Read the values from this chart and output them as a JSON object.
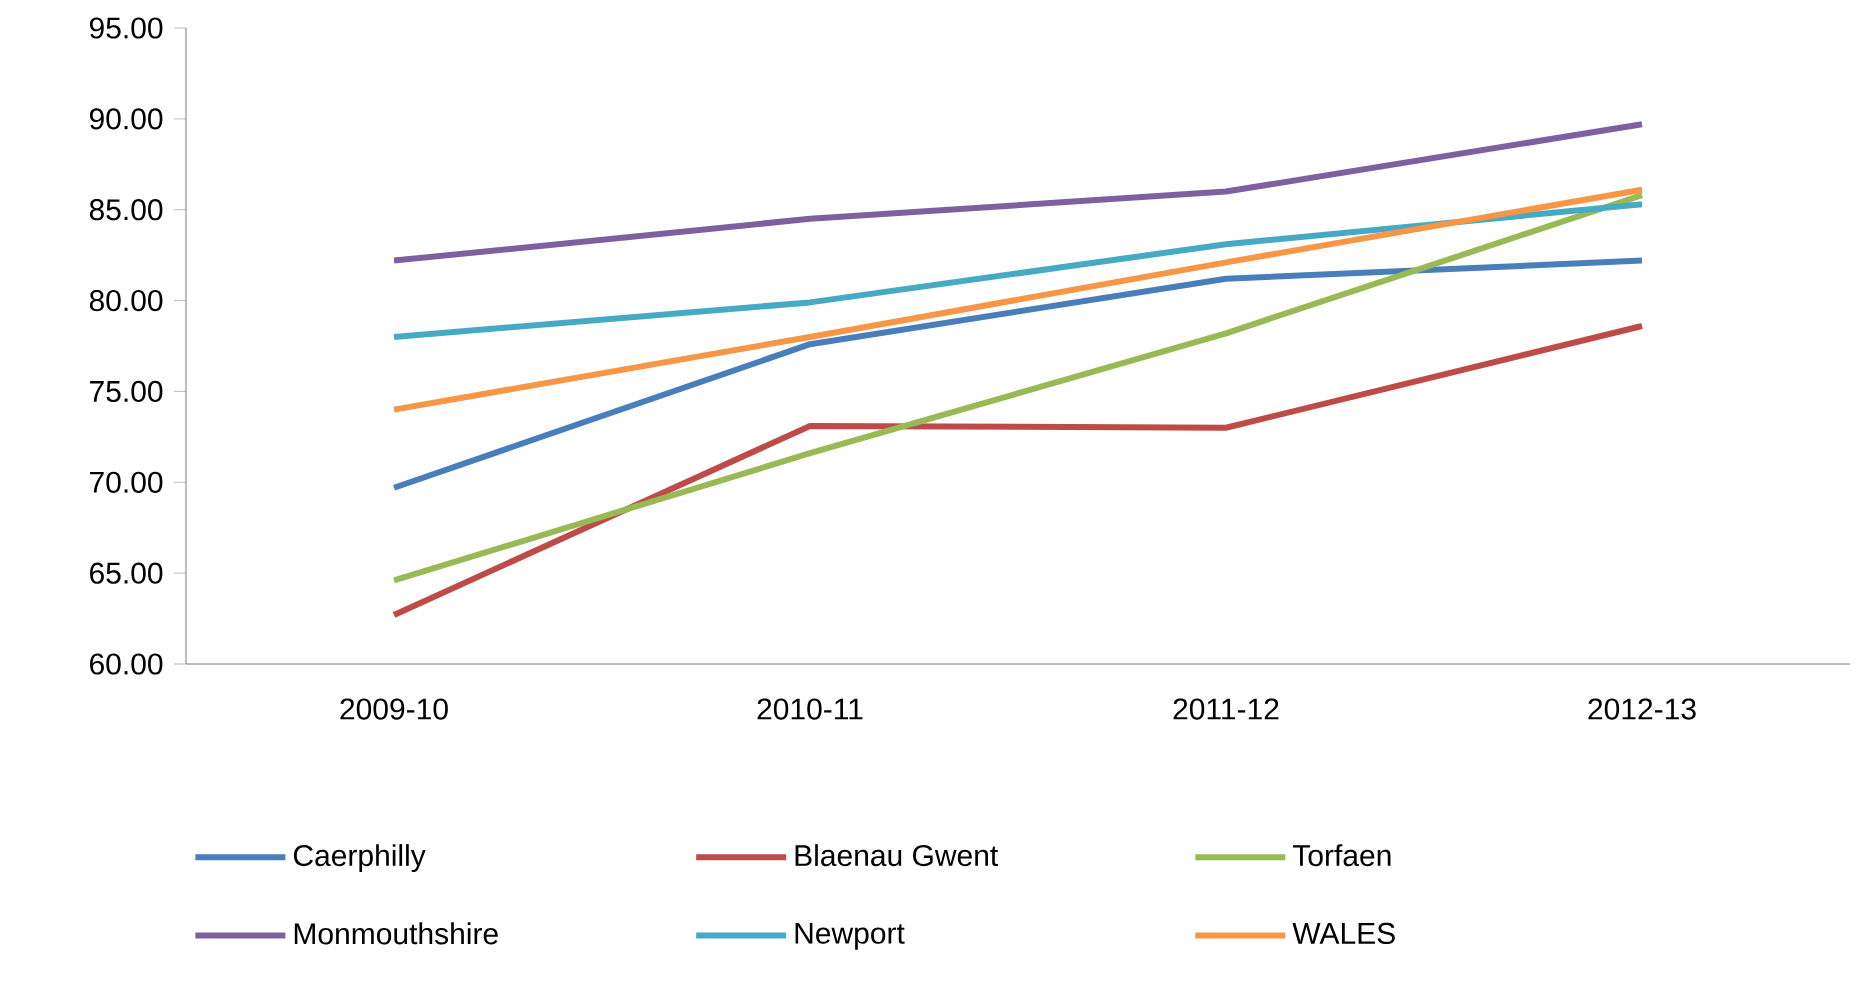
{
  "chart_data": {
    "type": "line",
    "categories": [
      "2009-10",
      "2010-11",
      "2011-12",
      "2012-13"
    ],
    "series": [
      {
        "name": "Caerphilly",
        "color": "#4a7ebb",
        "values": [
          69.7,
          77.6,
          81.2,
          82.2
        ]
      },
      {
        "name": "Blaenau Gwent",
        "color": "#be4b48",
        "values": [
          62.7,
          73.1,
          73.0,
          78.6
        ]
      },
      {
        "name": "Torfaen",
        "color": "#98b954",
        "values": [
          64.6,
          71.6,
          78.2,
          85.8
        ]
      },
      {
        "name": "Monmouthshire",
        "color": "#7d60a0",
        "values": [
          82.2,
          84.5,
          86.0,
          89.7
        ]
      },
      {
        "name": "Newport",
        "color": "#46aac5",
        "values": [
          78.0,
          79.9,
          83.1,
          85.3
        ]
      },
      {
        "name": "WALES",
        "color": "#f79646",
        "values": [
          74.0,
          78.0,
          82.1,
          86.1
        ]
      }
    ],
    "ylim": [
      60,
      95
    ],
    "yticks": [
      {
        "value": 60,
        "label": "60.00"
      },
      {
        "value": 65,
        "label": "65.00"
      },
      {
        "value": 70,
        "label": "70.00"
      },
      {
        "value": 75,
        "label": "75.00"
      },
      {
        "value": 80,
        "label": "80.00"
      },
      {
        "value": 85,
        "label": "85.00"
      },
      {
        "value": 90,
        "label": "90.00"
      },
      {
        "value": 95,
        "label": "95.00"
      }
    ],
    "legend": "bottom"
  }
}
